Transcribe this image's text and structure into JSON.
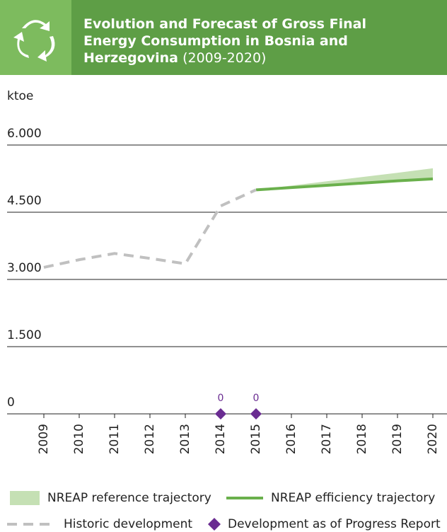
{
  "chart_data": {
    "type": "line",
    "title": "Evolution and Forecast of Gross Final Energy Consumption in Bosnia and Herzegovina",
    "subtitle": "(2009-2020)",
    "y_label": "ktoe",
    "categories": [
      "2009",
      "2010",
      "2011",
      "2012",
      "2013",
      "2014",
      "2015",
      "2016",
      "2017",
      "2018",
      "2019",
      "2020"
    ],
    "ylim": [
      0,
      6000
    ],
    "yticks": [
      0,
      {
        "value": 1500,
        "label": "1.500"
      },
      {
        "value": 3000,
        "label": "3.000"
      },
      {
        "value": 4500,
        "label": "4.500"
      },
      {
        "value": 6000,
        "label": "6.000"
      }
    ],
    "series": [
      {
        "name": "NREAP reference trajectory",
        "kind": "area",
        "color": "#c5e0b4",
        "values": [
          null,
          null,
          null,
          null,
          null,
          null,
          5000,
          5095,
          5190,
          5285,
          5380,
          5480
        ]
      },
      {
        "name": "NREAP efficiency trajectory",
        "kind": "line",
        "color": "#6ab04c",
        "values": [
          null,
          null,
          null,
          null,
          null,
          null,
          5000,
          5050,
          5100,
          5150,
          5200,
          5245
        ]
      },
      {
        "name": "Historic development",
        "kind": "dashed",
        "color": "#c0c0c0",
        "values": [
          3270,
          3440,
          3580,
          3470,
          3350,
          4640,
          5000,
          null,
          null,
          null,
          null,
          null
        ]
      },
      {
        "name": "Development as of Progress Report",
        "kind": "marker",
        "color": "#6a2c91",
        "values": [
          null,
          null,
          null,
          null,
          null,
          0,
          0,
          null,
          null,
          null,
          null,
          null
        ]
      }
    ]
  }
}
